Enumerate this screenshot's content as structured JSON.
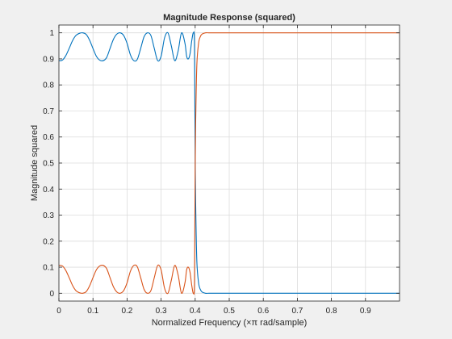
{
  "window": {
    "background": "#f0f0f0"
  },
  "chart_data": {
    "type": "line",
    "title": "Magnitude Response (squared)",
    "xlabel": "Normalized Frequency (×π rad/sample)",
    "ylabel": "Magnitude squared",
    "xlim": [
      0,
      1
    ],
    "ylim": [
      -0.03,
      1.03
    ],
    "xticks": [
      0,
      0.1,
      0.2,
      0.3,
      0.4,
      0.5,
      0.6,
      0.7,
      0.8,
      0.9
    ],
    "xtick_labels": [
      "0",
      "0.1",
      "0.2",
      "0.3",
      "0.4",
      "0.5",
      "0.6",
      "0.7",
      "0.8",
      "0.9"
    ],
    "yticks": [
      0,
      0.1,
      0.2,
      0.3,
      0.4,
      0.5,
      0.6,
      0.7,
      0.8,
      0.9,
      1
    ],
    "ytick_labels": [
      "0",
      "0.1",
      "0.2",
      "0.3",
      "0.4",
      "0.5",
      "0.6",
      "0.7",
      "0.8",
      "0.9",
      "1"
    ],
    "grid": true,
    "series": [
      {
        "color": "#0072bd",
        "x": [
          0,
          0.01,
          0.02,
          0.03,
          0.04,
          0.05,
          0.06,
          0.07,
          0.08,
          0.09,
          0.1,
          0.11,
          0.12,
          0.13,
          0.14,
          0.15,
          0.16,
          0.17,
          0.18,
          0.19,
          0.2,
          0.21,
          0.22,
          0.23,
          0.24,
          0.25,
          0.26,
          0.27,
          0.28,
          0.29,
          0.3,
          0.31,
          0.32,
          0.33,
          0.34,
          0.35,
          0.36,
          0.37,
          0.375,
          0.38,
          0.385,
          0.39,
          0.395,
          0.398,
          0.4,
          0.402,
          0.405,
          0.41,
          0.415,
          0.42,
          0.43,
          0.44,
          0.45,
          0.47,
          0.5,
          0.6,
          0.7,
          0.8,
          0.9,
          1.0
        ],
        "y": [
          0.893,
          0.895,
          0.912,
          0.94,
          0.97,
          0.99,
          0.998,
          1.0,
          0.994,
          0.972,
          0.94,
          0.91,
          0.895,
          0.893,
          0.905,
          0.94,
          0.975,
          0.995,
          1.0,
          0.99,
          0.96,
          0.915,
          0.893,
          0.898,
          0.94,
          0.985,
          1.0,
          0.99,
          0.94,
          0.893,
          0.91,
          0.98,
          1.0,
          0.95,
          0.893,
          0.93,
          1.0,
          0.96,
          0.91,
          0.9,
          0.92,
          0.97,
          1.0,
          0.95,
          0.52,
          0.3,
          0.12,
          0.04,
          0.015,
          0.005,
          0.0,
          0.0,
          0.0,
          0.0,
          0.0,
          0.0,
          0.0,
          0.0,
          0.0,
          0.0
        ]
      },
      {
        "color": "#d95319",
        "x": [
          0,
          0.01,
          0.02,
          0.03,
          0.04,
          0.05,
          0.06,
          0.07,
          0.08,
          0.09,
          0.1,
          0.11,
          0.12,
          0.13,
          0.14,
          0.15,
          0.16,
          0.17,
          0.18,
          0.19,
          0.2,
          0.21,
          0.22,
          0.23,
          0.24,
          0.25,
          0.26,
          0.27,
          0.28,
          0.29,
          0.3,
          0.31,
          0.32,
          0.33,
          0.34,
          0.35,
          0.36,
          0.37,
          0.375,
          0.38,
          0.385,
          0.39,
          0.395,
          0.398,
          0.4,
          0.402,
          0.405,
          0.41,
          0.415,
          0.42,
          0.43,
          0.44,
          0.45,
          0.47,
          0.5,
          0.6,
          0.7,
          0.8,
          0.9,
          1.0
        ],
        "y": [
          0.107,
          0.105,
          0.088,
          0.06,
          0.03,
          0.01,
          0.002,
          0.0,
          0.006,
          0.028,
          0.06,
          0.09,
          0.105,
          0.107,
          0.095,
          0.06,
          0.025,
          0.005,
          0.0,
          0.01,
          0.04,
          0.085,
          0.107,
          0.102,
          0.06,
          0.015,
          0.0,
          0.01,
          0.06,
          0.107,
          0.09,
          0.02,
          0.0,
          0.05,
          0.107,
          0.07,
          0.0,
          0.04,
          0.09,
          0.1,
          0.08,
          0.03,
          0.0,
          0.05,
          0.48,
          0.7,
          0.88,
          0.96,
          0.985,
          0.995,
          1.0,
          1.0,
          1.0,
          1.0,
          1.0,
          1.0,
          1.0,
          1.0,
          1.0,
          1.0
        ]
      }
    ]
  }
}
